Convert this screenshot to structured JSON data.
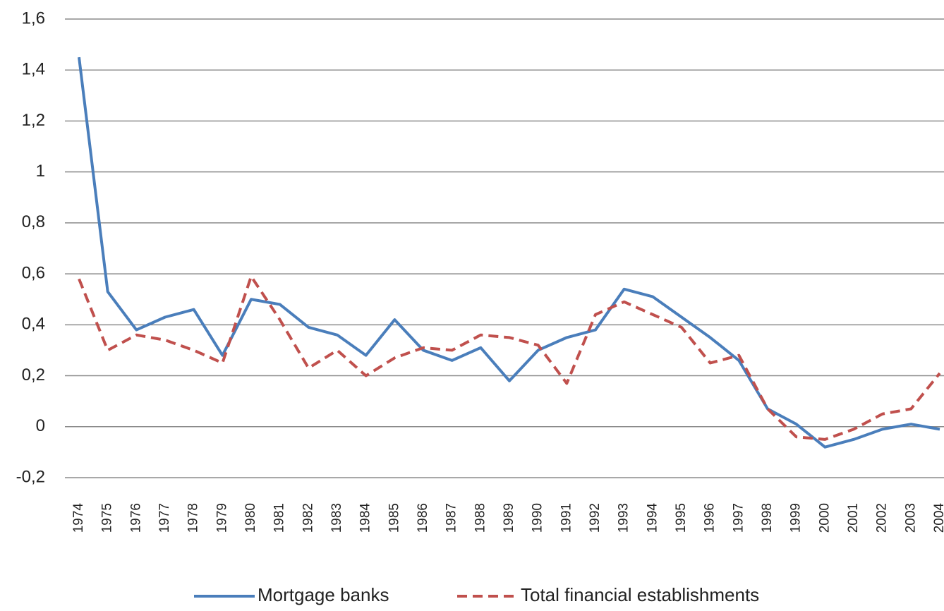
{
  "chart_data": {
    "type": "line",
    "categories": [
      "1974",
      "1975",
      "1976",
      "1977",
      "1978",
      "1979",
      "1980",
      "1981",
      "1982",
      "1983",
      "1984",
      "1985",
      "1986",
      "1987",
      "1988",
      "1989",
      "1990",
      "1991",
      "1992",
      "1993",
      "1994",
      "1995",
      "1996",
      "1997",
      "1998",
      "1999",
      "2000",
      "2001",
      "2002",
      "2003",
      "2004"
    ],
    "series": [
      {
        "name": "Mortgage banks",
        "color": "#4a7ebb",
        "dashed": false,
        "values": [
          1.45,
          0.53,
          0.38,
          0.43,
          0.46,
          0.28,
          0.5,
          0.48,
          0.39,
          0.36,
          0.28,
          0.42,
          0.3,
          0.26,
          0.31,
          0.18,
          0.3,
          0.35,
          0.38,
          0.54,
          0.51,
          0.43,
          0.35,
          0.26,
          0.07,
          0.01,
          -0.08,
          -0.05,
          -0.01,
          0.01,
          -0.01
        ]
      },
      {
        "name": "Total financial establishments",
        "color": "#c0504d",
        "dashed": true,
        "values": [
          0.58,
          0.3,
          0.36,
          0.34,
          0.3,
          0.25,
          0.59,
          0.42,
          0.23,
          0.3,
          0.2,
          0.27,
          0.31,
          0.3,
          0.36,
          0.35,
          0.32,
          0.17,
          0.44,
          0.49,
          0.44,
          0.39,
          0.25,
          0.28,
          0.07,
          -0.04,
          -0.05,
          -0.01,
          0.05,
          0.07,
          0.21
        ]
      }
    ],
    "ylim": [
      -0.2,
      1.6
    ],
    "yticks": [
      {
        "value": -0.2,
        "label": "-0,2"
      },
      0,
      {
        "value": 0.2,
        "label": "0,2"
      },
      {
        "value": 0.4,
        "label": "0,4"
      },
      {
        "value": 0.6,
        "label": "0,6"
      },
      {
        "value": 0.8,
        "label": "0,8"
      },
      1,
      {
        "value": 1.2,
        "label": "1,2"
      },
      {
        "value": 1.4,
        "label": "1,4"
      },
      {
        "value": 1.6,
        "label": "1,6"
      }
    ],
    "grid": true,
    "legend": "bottom"
  }
}
